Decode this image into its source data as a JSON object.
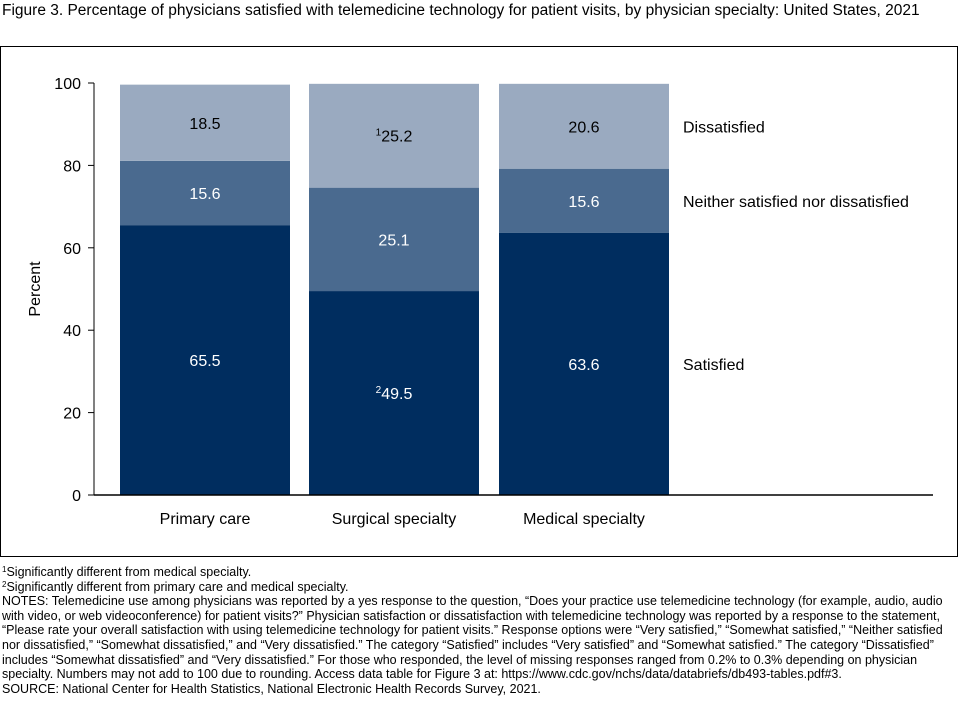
{
  "figure": {
    "title": "Figure 3. Percentage of physicians satisfied with telemedicine technology for patient visits, by physician specialty: United States, 2021"
  },
  "chart_data": {
    "type": "bar",
    "stacked": true,
    "categories": [
      "Primary care",
      "Surgical specialty",
      "Medical specialty"
    ],
    "series": [
      {
        "name": "Satisfied",
        "values": [
          65.5,
          49.5,
          63.6
        ],
        "color": "#002D5F",
        "markers": [
          "",
          "2",
          ""
        ]
      },
      {
        "name": "Neither satisfied nor dissatisfied",
        "values": [
          15.6,
          25.1,
          15.6
        ],
        "color": "#4A6A8F",
        "markers": [
          "",
          "",
          ""
        ]
      },
      {
        "name": "Dissatisfied",
        "values": [
          18.5,
          25.2,
          20.6
        ],
        "color": "#9AAAC0",
        "markers": [
          "",
          "1",
          ""
        ]
      }
    ],
    "ylabel": "Percent",
    "xlabel": "",
    "ylim": [
      0,
      100
    ],
    "yticks": [
      0,
      20,
      40,
      60,
      80,
      100
    ],
    "legend_placement": "right",
    "grid": false,
    "label_color": {
      "dark": "#FFFFFF",
      "light": "#000000"
    }
  },
  "footnotes": [
    {
      "marker": "1",
      "text": "Significantly different from medical specialty."
    },
    {
      "marker": "2",
      "text": "Significantly different from primary care and medical specialty."
    }
  ],
  "notes": "NOTES: Telemedicine use among physicians was reported by a yes response to the question, “Does your practice use telemedicine technology (for example, audio, audio with video, or web videoconference) for patient visits?” Physician satisfaction or dissatisfaction with telemedicine technology was reported by a response to the statement, “Please rate your overall satisfaction with using telemedicine technology for patient visits.” Response options were “Very satisfied,” “Somewhat satisfied,” “Neither satisfied nor dissatisfied,” “Somewhat dissatisfied,” and “Very dissatisfied.” The category “Satisfied” includes “Very satisfied” and “Somewhat satisfied.” The category “Dissatisfied” includes “Somewhat dissatisfied” and “Very dissatisfied.” For those who responded, the level of missing responses ranged from 0.2% to 0.3% depending on physician specialty. Numbers may not add to 100 due to rounding. Access data table for Figure 3 at: https://www.cdc.gov/nchs/data/databriefs/db493-tables.pdf#3.",
  "source": "SOURCE: National Center for Health Statistics, National Electronic Health Records Survey, 2021."
}
